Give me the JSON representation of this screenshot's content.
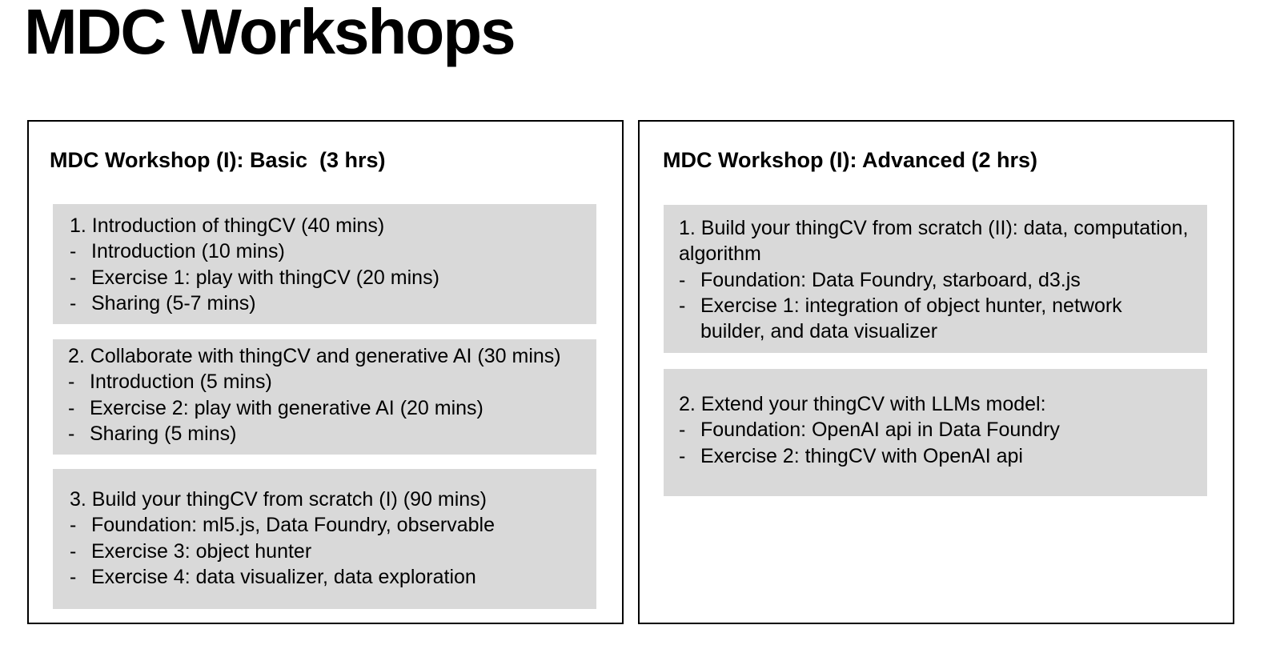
{
  "page_title": "MDC Workshops",
  "workshops": [
    {
      "title": "MDC Workshop (I): Basic  (3 hrs)",
      "sections": [
        {
          "heading": "1. Introduction of thingCV (40 mins)",
          "items": [
            "Introduction (10 mins)",
            "Exercise 1: play with thingCV (20 mins)",
            "Sharing (5-7 mins)"
          ]
        },
        {
          "heading": "2. Collaborate with thingCV and generative AI (30 mins)",
          "items": [
            "Introduction (5 mins)",
            "Exercise 2: play with generative AI (20 mins)",
            "Sharing (5 mins)"
          ]
        },
        {
          "heading": "3. Build your thingCV from scratch (I) (90 mins)",
          "items": [
            "Foundation: ml5.js, Data Foundry, observable",
            "Exercise 3: object hunter",
            "Exercise 4: data visualizer, data exploration"
          ]
        }
      ]
    },
    {
      "title": "MDC Workshop (I): Advanced (2 hrs)",
      "sections": [
        {
          "heading": "1. Build your thingCV from scratch (II): data, computation, algorithm",
          "items": [
            "Foundation: Data Foundry, starboard, d3.js",
            "Exercise 1: integration of object hunter, network builder, and data visualizer"
          ]
        },
        {
          "heading": "2. Extend your thingCV with LLMs model:",
          "items": [
            "Foundation: OpenAI api in Data Foundry",
            "Exercise 2: thingCV with OpenAI api"
          ]
        }
      ]
    }
  ],
  "bullet_marker": "-"
}
